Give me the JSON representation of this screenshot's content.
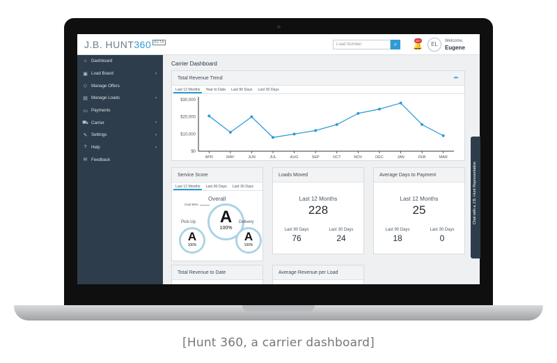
{
  "app": {
    "logo_brand": "J.B. HUNT",
    "logo_num": "360",
    "logo_beta": "BETA",
    "search_placeholder": "Load Number",
    "notification_count": "287",
    "avatar_initials": "EL",
    "welcome": "Welcome,",
    "username": "Eugene"
  },
  "sidebar": {
    "items": [
      {
        "label": "Dashboard",
        "icon": "home-icon",
        "arrow": false
      },
      {
        "label": "Load Board",
        "icon": "board-icon",
        "arrow": true
      },
      {
        "label": "Manage Offers",
        "icon": "tag-icon",
        "arrow": false
      },
      {
        "label": "Manage Loads",
        "icon": "folder-icon",
        "arrow": true
      },
      {
        "label": "Payments",
        "icon": "card-icon",
        "arrow": false
      },
      {
        "label": "Carrier",
        "icon": "truck-icon",
        "arrow": true
      },
      {
        "label": "Settings",
        "icon": "wrench-icon",
        "arrow": true
      },
      {
        "label": "Help",
        "icon": "help-icon",
        "arrow": true
      },
      {
        "label": "Feedback",
        "icon": "feedback-icon",
        "arrow": false
      }
    ]
  },
  "page": {
    "title": "Carrier Dashboard"
  },
  "revenue_trend": {
    "title": "Total Revenue Trend",
    "tabs": [
      "Last 12 Months",
      "Year to Date",
      "Last 90 Days",
      "Last 30 Days"
    ],
    "active_tab": 0
  },
  "chart_data": {
    "type": "line",
    "categories": [
      "APR",
      "MAY",
      "JUN",
      "JUL",
      "AUG",
      "SEP",
      "OCT",
      "NOV",
      "DEC",
      "JAN",
      "FEB",
      "MAR"
    ],
    "values": [
      20500,
      11000,
      20000,
      8000,
      10000,
      12000,
      15500,
      22000,
      24500,
      28000,
      15500,
      9000
    ],
    "ylim": [
      0,
      30000
    ],
    "yticks": [
      "$30,000",
      "$20,000",
      "$10,000",
      "$0"
    ],
    "title": "",
    "xlabel": "",
    "ylabel": "",
    "color": "#2f9bd4"
  },
  "service_score": {
    "title": "Service Score",
    "tabs": [
      "Last 12 Months",
      "Last 90 Days",
      "Last 30 Days"
    ],
    "goal_label": "Goal 96%",
    "overall": {
      "label": "Overall",
      "grade": "A",
      "pct": "100%"
    },
    "pickup": {
      "label": "Pick-Up",
      "grade": "A",
      "pct": "100%"
    },
    "delivery": {
      "label": "Delivery",
      "grade": "A",
      "pct": "100%"
    }
  },
  "loads_moved": {
    "title": "Loads Moved",
    "main_label": "Last 12 Months",
    "main_value": "228",
    "left_label": "Last 90 Days",
    "left_value": "76",
    "right_label": "Last 30 Days",
    "right_value": "24"
  },
  "avg_days": {
    "title": "Average Days to Payment",
    "main_label": "Last 12 Months",
    "main_value": "25",
    "left_label": "Last 90 Days",
    "left_value": "18",
    "right_label": "Last 30 Days",
    "right_value": "0"
  },
  "bottom_cards": {
    "revenue_to_date": "Total Revenue to Date",
    "avg_revenue": "Average Revenue per Load"
  },
  "side_tab": "Chat with a J.B. Hunt Representative",
  "caption": "[Hunt 360, a carrier dashboard]"
}
